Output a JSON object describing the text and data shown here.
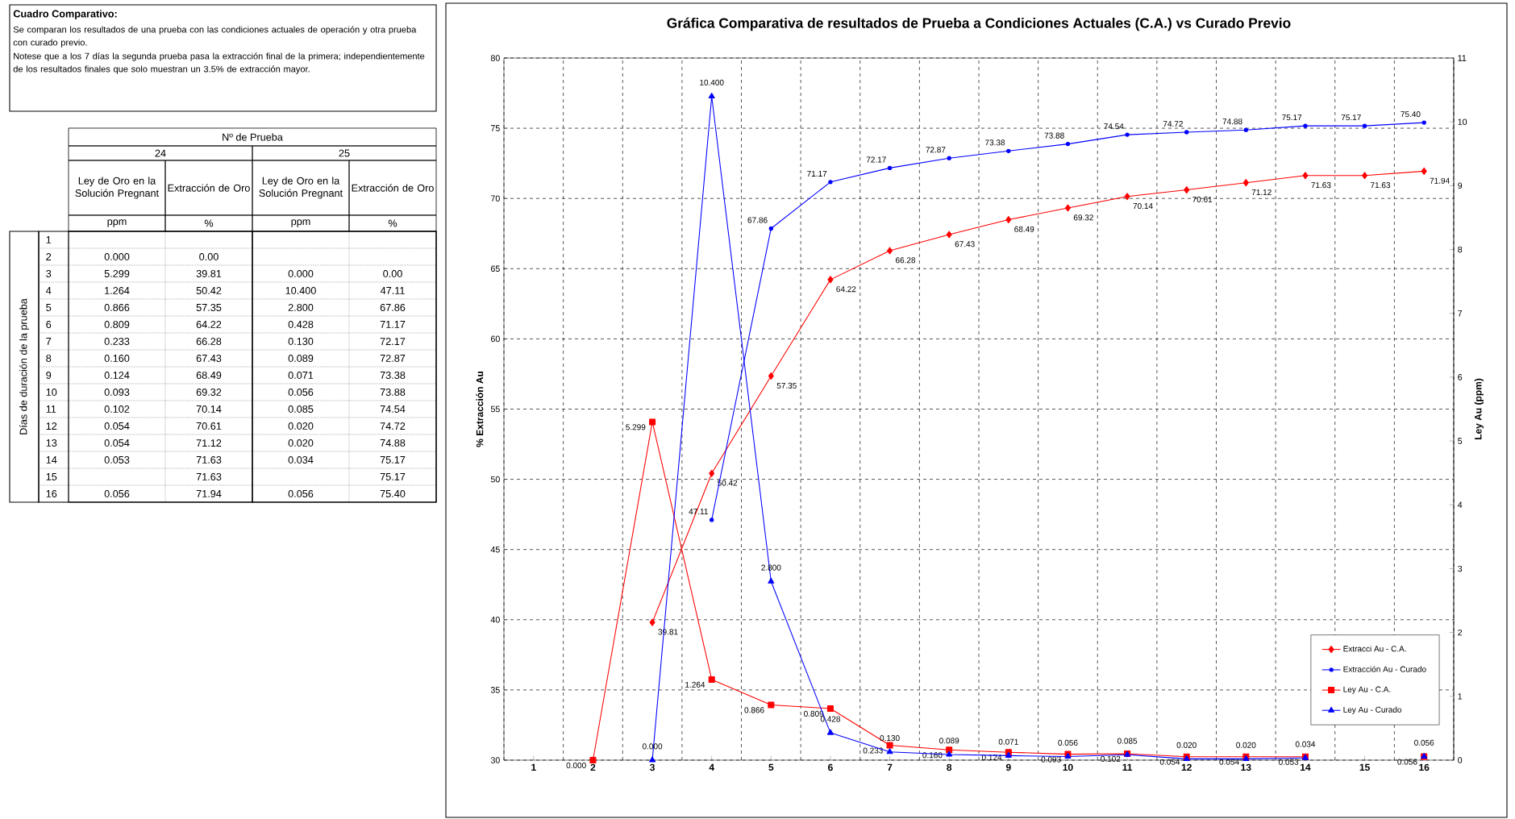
{
  "chart_data": [
    {
      "type": "other",
      "title": "Cuadro Comparativo:",
      "annotations": [
        "Se comparan los resultados de una prueba con las condiciones actuales de operación y otra prueba con curado previo.",
        "Notese que a los 7 días la segunda prueba pasa la extracción final de la primera; independientemente de los resultados finales que solo muestran un 3.5% de extracción mayor."
      ]
    },
    {
      "type": "heatmap",
      "title": "Nº de Prueba",
      "ylabel": "Días de duración de la prueba",
      "annotations": [
        "24",
        "25",
        "ppm",
        "%",
        "ppm",
        "%"
      ],
      "categories": [
        "Ley de Oro en la Solución Pregnant",
        "Extracción de Oro",
        "Ley de Oro en la Solución Pregnant",
        "Extracción de Oro"
      ],
      "y_categories": [
        "1",
        "2",
        "3",
        "4",
        "5",
        "6",
        "7",
        "8",
        "9",
        "10",
        "11",
        "12",
        "13",
        "14",
        "15",
        "16"
      ],
      "cells": [
        [
          null,
          null,
          null,
          null
        ],
        [
          "0.000",
          "0.00",
          null,
          null
        ],
        [
          "5.299",
          "39.81",
          "0.000",
          "0.00"
        ],
        [
          "1.264",
          "50.42",
          "10.400",
          "47.11"
        ],
        [
          "0.866",
          "57.35",
          "2.800",
          "67.86"
        ],
        [
          "0.809",
          "64.22",
          "0.428",
          "71.17"
        ],
        [
          "0.233",
          "66.28",
          "0.130",
          "72.17"
        ],
        [
          "0.160",
          "67.43",
          "0.089",
          "72.87"
        ],
        [
          "0.124",
          "68.49",
          "0.071",
          "73.38"
        ],
        [
          "0.093",
          "69.32",
          "0.056",
          "73.88"
        ],
        [
          "0.102",
          "70.14",
          "0.085",
          "74.54"
        ],
        [
          "0.054",
          "70.61",
          "0.020",
          "74.72"
        ],
        [
          "0.054",
          "71.12",
          "0.020",
          "74.88"
        ],
        [
          "0.053",
          "71.63",
          "0.034",
          "75.17"
        ],
        [
          null,
          "71.63",
          null,
          "75.17"
        ],
        [
          "0.056",
          "71.94",
          "0.056",
          "75.40"
        ]
      ]
    },
    {
      "type": "line",
      "title": "Gráfica Comparativa de resultados de Prueba a Condiciones Actuales (C.A.) vs Curado Previo",
      "ylabel": "% Extracción  Au",
      "y2label": "Ley Au (ppm)",
      "categories": [
        "1",
        "2",
        "3",
        "4",
        "5",
        "6",
        "7",
        "8",
        "9",
        "10",
        "11",
        "12",
        "13",
        "14",
        "15",
        "16"
      ],
      "ylim": [
        30,
        80
      ],
      "yticks": [
        30,
        35,
        40,
        45,
        50,
        55,
        60,
        65,
        70,
        75,
        80
      ],
      "y2lim": [
        0,
        11
      ],
      "y2ticks": [
        0,
        1,
        2,
        3,
        4,
        5,
        6,
        7,
        8,
        9,
        10,
        11
      ],
      "grid": true,
      "legend": "bottom right",
      "series": [
        {
          "name": "Extracci Au - C.A.",
          "color": "#ff0000",
          "marker": "diamond",
          "values": [
            null,
            null,
            39.81,
            50.42,
            57.35,
            64.22,
            66.28,
            67.43,
            68.49,
            69.32,
            70.14,
            70.61,
            71.12,
            71.63,
            71.63,
            71.94
          ],
          "value_labels": [
            null,
            null,
            "39.81",
            "50.42",
            "57.35",
            "64.22",
            "66.28",
            "67.43",
            "68.49",
            "69.32",
            "70.14",
            "70.61",
            "71.12",
            "71.63",
            "71.63",
            "71.94"
          ]
        },
        {
          "name": "Extracción Au - Curado",
          "color": "#0000ff",
          "marker": "circle",
          "values": [
            null,
            null,
            null,
            47.11,
            67.86,
            71.17,
            72.17,
            72.87,
            73.38,
            73.88,
            74.54,
            74.72,
            74.88,
            75.17,
            75.17,
            75.4
          ],
          "value_labels": [
            null,
            null,
            null,
            "47.11",
            "67.86",
            "71.17",
            "72.17",
            "72.87",
            "73.38",
            "73.88",
            "74.54",
            "74.72",
            "74.88",
            "75.17",
            "75.17",
            "75.40"
          ]
        },
        {
          "name": "Ley Au - C.A.",
          "color": "#ff0000",
          "marker": "square",
          "axis": "y2",
          "values": [
            null,
            0,
            5.299,
            1.264,
            0.866,
            0.809,
            0.233,
            0.16,
            0.124,
            0.093,
            0.102,
            0.054,
            0.054,
            0.053,
            null,
            0.056
          ],
          "value_labels": [
            null,
            "0.000",
            "5.299",
            "1.264",
            "0.866",
            "0.809",
            "0.233",
            "0.160",
            "0.124",
            "0.093",
            "0.102",
            "0.054",
            "0.054",
            "0.053",
            null,
            "0.056"
          ]
        },
        {
          "name": "Ley Au - Curado",
          "color": "#0000ff",
          "marker": "triangle",
          "axis": "y2",
          "values": [
            null,
            null,
            0,
            10.4,
            2.8,
            0.428,
            0.13,
            0.089,
            0.071,
            0.056,
            0.085,
            0.02,
            0.02,
            0.034,
            null,
            0.056
          ],
          "value_labels": [
            null,
            null,
            "0.000",
            "10.400",
            "2.800",
            "0.428",
            "0.130",
            "0.089",
            "0.071",
            "0.056",
            "0.085",
            "0.020",
            "0.020",
            "0.034",
            null,
            "0.056"
          ]
        }
      ]
    }
  ]
}
